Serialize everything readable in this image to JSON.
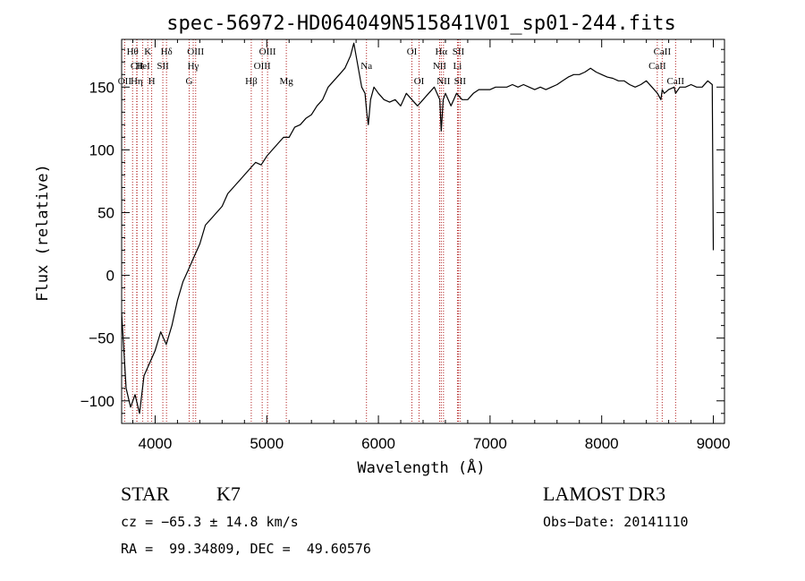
{
  "chart_data": {
    "type": "line",
    "title": "spec-56972-HD064049N515841V01_sp01-244.fits",
    "xlabel": "Wavelength (Å)",
    "ylabel": "Flux (relative)",
    "xlim": [
      3700,
      9100
    ],
    "ylim": [
      -118,
      188
    ],
    "xticks": [
      4000,
      5000,
      6000,
      7000,
      8000,
      9000
    ],
    "yticks": [
      -100,
      -50,
      0,
      50,
      100,
      150
    ],
    "series": [
      {
        "name": "flux",
        "x": [
          3700,
          3740,
          3780,
          3820,
          3860,
          3900,
          3950,
          4000,
          4050,
          4100,
          4150,
          4200,
          4250,
          4300,
          4350,
          4400,
          4450,
          4500,
          4550,
          4600,
          4650,
          4700,
          4750,
          4800,
          4850,
          4900,
          4950,
          5000,
          5050,
          5100,
          5150,
          5200,
          5250,
          5300,
          5350,
          5400,
          5450,
          5500,
          5550,
          5600,
          5650,
          5700,
          5750,
          5780,
          5800,
          5820,
          5850,
          5880,
          5895,
          5910,
          5930,
          5960,
          6000,
          6050,
          6100,
          6150,
          6200,
          6250,
          6300,
          6350,
          6400,
          6450,
          6500,
          6550,
          6563,
          6580,
          6600,
          6650,
          6700,
          6750,
          6800,
          6850,
          6900,
          6950,
          7000,
          7050,
          7100,
          7150,
          7200,
          7250,
          7300,
          7350,
          7400,
          7450,
          7500,
          7550,
          7600,
          7650,
          7700,
          7750,
          7800,
          7850,
          7900,
          7950,
          8000,
          8050,
          8100,
          8150,
          8200,
          8250,
          8300,
          8350,
          8400,
          8450,
          8500,
          8530,
          8542,
          8560,
          8600,
          8650,
          8662,
          8700,
          8750,
          8800,
          8850,
          8900,
          8950,
          8990,
          9000
        ],
        "y": [
          -30,
          -90,
          -105,
          -95,
          -110,
          -80,
          -70,
          -60,
          -45,
          -55,
          -40,
          -20,
          -5,
          5,
          15,
          25,
          40,
          45,
          50,
          55,
          65,
          70,
          75,
          80,
          85,
          90,
          88,
          95,
          100,
          105,
          110,
          110,
          118,
          120,
          125,
          128,
          135,
          140,
          150,
          155,
          160,
          165,
          175,
          185,
          175,
          165,
          150,
          145,
          130,
          120,
          140,
          150,
          145,
          140,
          138,
          140,
          135,
          145,
          140,
          135,
          140,
          145,
          150,
          140,
          115,
          140,
          145,
          135,
          145,
          140,
          140,
          145,
          148,
          148,
          148,
          150,
          150,
          150,
          152,
          150,
          152,
          150,
          148,
          150,
          148,
          150,
          152,
          155,
          158,
          160,
          160,
          162,
          165,
          162,
          160,
          158,
          157,
          155,
          155,
          152,
          150,
          152,
          155,
          150,
          145,
          140,
          148,
          145,
          148,
          150,
          145,
          150,
          150,
          152,
          150,
          150,
          155,
          152,
          20
        ]
      }
    ],
    "spectral_lines": [
      {
        "name": "Hθ",
        "x": 3798,
        "row": 1
      },
      {
        "name": "CII",
        "x": 3838,
        "row": 2
      },
      {
        "name": "OII",
        "x": 3727,
        "row": 3
      },
      {
        "name": "Hη",
        "x": 3835,
        "row": 3
      },
      {
        "name": "K",
        "x": 3934,
        "row": 1
      },
      {
        "name": "HeI",
        "x": 3889,
        "row": 2
      },
      {
        "name": "H",
        "x": 3969,
        "row": 3
      },
      {
        "name": "Hδ",
        "x": 4102,
        "row": 1
      },
      {
        "name": "SII",
        "x": 4069,
        "row": 2
      },
      {
        "name": "OIII",
        "x": 4363,
        "row": 1
      },
      {
        "name": "Hγ",
        "x": 4341,
        "row": 2
      },
      {
        "name": "G",
        "x": 4305,
        "row": 3
      },
      {
        "name": "OIII",
        "x": 5007,
        "row": 1
      },
      {
        "name": "OIII",
        "x": 4959,
        "row": 2
      },
      {
        "name": "Hβ",
        "x": 4861,
        "row": 3
      },
      {
        "name": "Mg",
        "x": 5175,
        "row": 3
      },
      {
        "name": "Na",
        "x": 5893,
        "row": 2
      },
      {
        "name": "OI",
        "x": 6300,
        "row": 1
      },
      {
        "name": "OI",
        "x": 6364,
        "row": 3
      },
      {
        "name": "Hα",
        "x": 6563,
        "row": 1
      },
      {
        "name": "SII",
        "x": 6716,
        "row": 1
      },
      {
        "name": "NII",
        "x": 6548,
        "row": 2
      },
      {
        "name": "Li",
        "x": 6708,
        "row": 2
      },
      {
        "name": "NII",
        "x": 6583,
        "row": 3
      },
      {
        "name": "SII",
        "x": 6731,
        "row": 3
      },
      {
        "name": "CaII",
        "x": 8542,
        "row": 1
      },
      {
        "name": "CaII",
        "x": 8498,
        "row": 2
      },
      {
        "name": "CaII",
        "x": 8662,
        "row": 3
      }
    ]
  },
  "info": {
    "object_class": "STAR",
    "subclass": "K7",
    "survey": "LAMOST DR3",
    "redshift": "cz = −65.3 ± 14.8 km/s",
    "obs_date": "Obs−Date: 20141110",
    "coords": "RA =  99.34809, DEC =  49.60576"
  },
  "colors": {
    "spectrum": "#000000",
    "marker_lines": "#b22222",
    "axes": "#000000"
  }
}
